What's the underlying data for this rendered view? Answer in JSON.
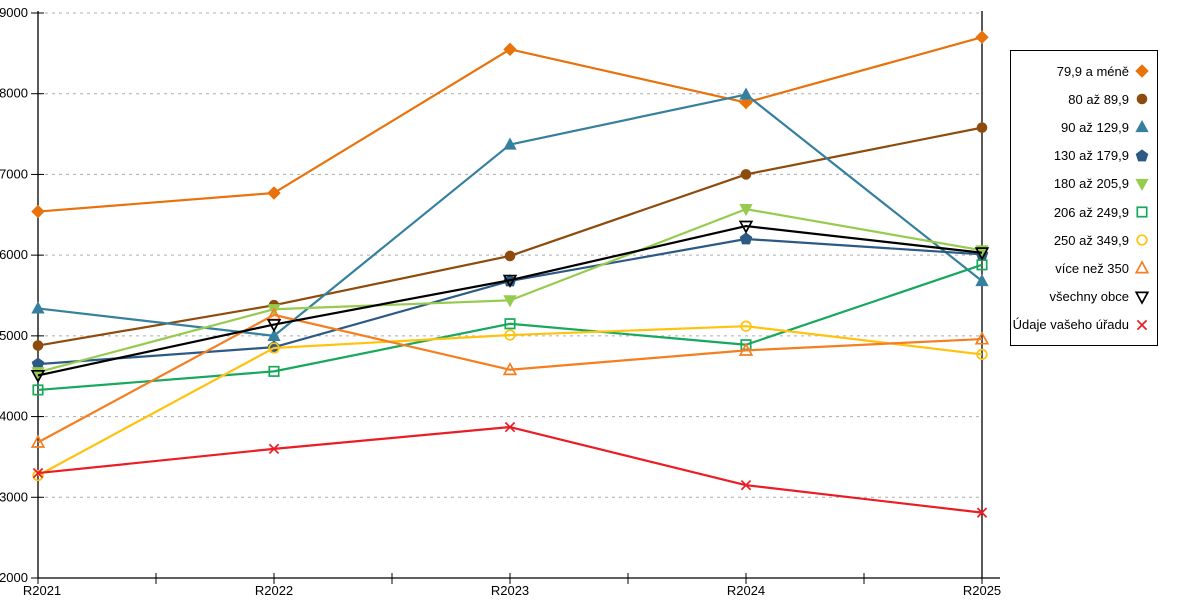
{
  "chart_data": {
    "type": "line",
    "title": "",
    "xlabel": "",
    "ylabel": "",
    "categories": [
      "R2021",
      "R2022",
      "R2023",
      "R2024",
      "R2025"
    ],
    "ylim": [
      2000,
      9000
    ],
    "y_ticks": [
      2000,
      3000,
      4000,
      5000,
      6000,
      7000,
      8000,
      9000
    ],
    "grid": "horizontal-dashed",
    "legend_position": "right",
    "series": [
      {
        "name": "79,9 a méně",
        "color": "#E8720C",
        "marker": "diamond",
        "fill": "solid",
        "values": [
          6540,
          6770,
          8550,
          7890,
          8700
        ]
      },
      {
        "name": "80 až 89,9",
        "color": "#8E4B0C",
        "marker": "circle",
        "fill": "solid",
        "values": [
          4880,
          5380,
          5990,
          7000,
          7580
        ]
      },
      {
        "name": "90 až 129,9",
        "color": "#35809E",
        "marker": "triangle-up",
        "fill": "solid",
        "values": [
          5340,
          5000,
          7370,
          7990,
          5680
        ]
      },
      {
        "name": "130 až 179,9",
        "color": "#2D5A85",
        "marker": "pentagon",
        "fill": "solid",
        "values": [
          4650,
          4860,
          5680,
          6200,
          6010
        ]
      },
      {
        "name": "180 až 205,9",
        "color": "#97CB4F",
        "marker": "triangle-down",
        "fill": "solid",
        "values": [
          4550,
          5330,
          5440,
          6570,
          6060
        ]
      },
      {
        "name": "206 až 249,9",
        "color": "#17A85C",
        "marker": "square",
        "fill": "open",
        "values": [
          4330,
          4560,
          5150,
          4890,
          5880
        ]
      },
      {
        "name": "250 až 349,9",
        "color": "#FFC20E",
        "marker": "circle",
        "fill": "open",
        "values": [
          3270,
          4850,
          5010,
          5120,
          4770
        ]
      },
      {
        "name": "více než 350",
        "color": "#F57E20",
        "marker": "triangle-up",
        "fill": "open",
        "values": [
          3680,
          5260,
          4580,
          4820,
          4960
        ]
      },
      {
        "name": "všechny obce",
        "color": "#000000",
        "marker": "triangle-down",
        "fill": "open",
        "values": [
          4510,
          5140,
          5690,
          6360,
          6030
        ]
      },
      {
        "name": "Údaje vašeho úřadu",
        "color": "#EB1C24",
        "marker": "x",
        "fill": "open",
        "values": [
          3300,
          3600,
          3870,
          3150,
          2810
        ]
      }
    ]
  }
}
